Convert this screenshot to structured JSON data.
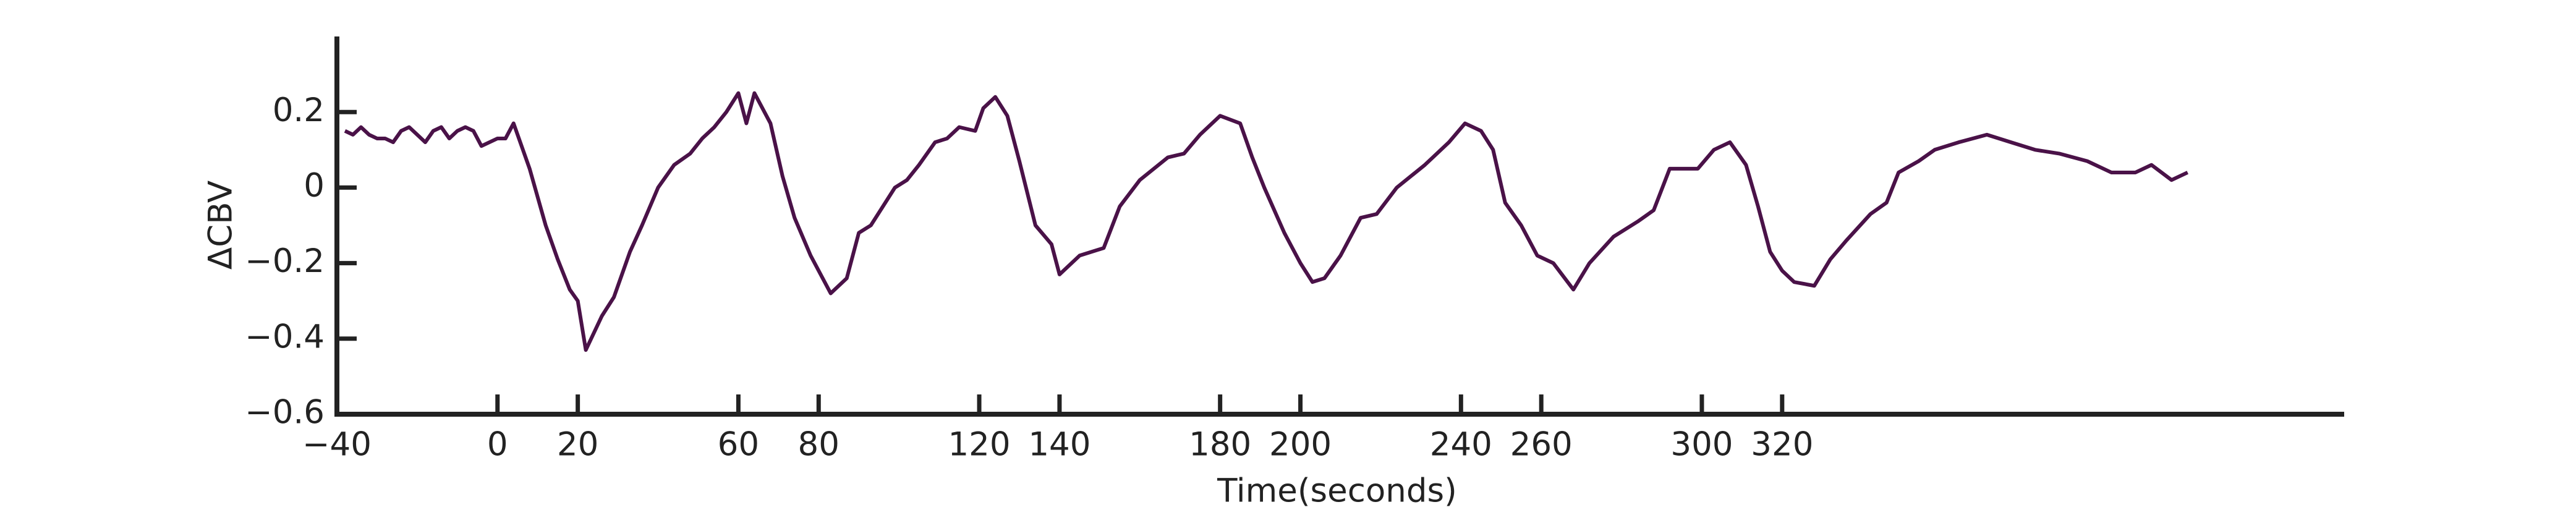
{
  "chart_data": {
    "type": "line",
    "xlabel": "Time(seconds)",
    "ylabel": "ΔCBV",
    "x": [
      -38,
      -36,
      -34,
      -32,
      -30,
      -28,
      -26,
      -24,
      -22,
      -20,
      -18,
      -16,
      -14,
      -12,
      -10,
      -8,
      -6,
      -4,
      -2,
      0,
      2,
      4,
      8,
      12,
      15,
      18,
      20,
      22,
      26,
      29,
      33,
      36,
      40,
      44,
      48,
      51,
      54,
      57,
      60,
      62,
      64,
      68,
      71,
      74,
      78,
      83,
      87,
      90,
      93,
      96,
      99,
      102,
      105,
      109,
      112,
      115,
      119,
      121,
      124,
      127,
      130,
      134,
      138,
      140,
      145,
      151,
      155,
      160,
      167,
      171,
      175,
      180,
      185,
      188,
      191,
      196,
      200,
      203,
      206,
      210,
      215,
      219,
      224,
      231,
      237,
      241,
      245,
      248,
      251,
      255,
      259,
      263,
      268,
      272,
      278,
      284,
      288,
      292,
      299,
      303,
      307,
      311,
      314,
      317,
      320,
      323,
      328,
      332,
      336,
      342,
      346,
      349,
      354,
      358,
      364,
      371,
      377,
      383,
      389,
      396,
      402,
      408,
      412,
      417,
      421
    ],
    "series": [
      {
        "name": "ΔCBV",
        "color": "#4a1248",
        "values": [
          0.15,
          0.14,
          0.16,
          0.14,
          0.13,
          0.13,
          0.12,
          0.15,
          0.16,
          0.14,
          0.12,
          0.15,
          0.16,
          0.13,
          0.15,
          0.16,
          0.15,
          0.11,
          0.12,
          0.13,
          0.13,
          0.17,
          0.05,
          -0.1,
          -0.19,
          -0.27,
          -0.3,
          -0.43,
          -0.34,
          -0.29,
          -0.17,
          -0.1,
          0.0,
          0.06,
          0.09,
          0.13,
          0.16,
          0.2,
          0.25,
          0.17,
          0.25,
          0.17,
          0.03,
          -0.08,
          -0.18,
          -0.28,
          -0.24,
          -0.12,
          -0.1,
          -0.05,
          0.0,
          0.02,
          0.06,
          0.12,
          0.13,
          0.16,
          0.15,
          0.21,
          0.24,
          0.19,
          0.07,
          -0.1,
          -0.15,
          -0.23,
          -0.18,
          -0.16,
          -0.05,
          0.02,
          0.08,
          0.09,
          0.14,
          0.19,
          0.17,
          0.08,
          0.0,
          -0.12,
          -0.2,
          -0.25,
          -0.24,
          -0.18,
          -0.08,
          -0.07,
          0.0,
          0.06,
          0.12,
          0.17,
          0.15,
          0.1,
          -0.04,
          -0.1,
          -0.18,
          -0.2,
          -0.27,
          -0.2,
          -0.13,
          -0.09,
          -0.06,
          0.05,
          0.05,
          0.1,
          0.12,
          0.06,
          -0.05,
          -0.17,
          -0.22,
          -0.25,
          -0.26,
          -0.19,
          -0.14,
          -0.07,
          -0.04,
          0.04,
          0.07,
          0.1,
          0.12,
          0.14,
          0.12,
          0.1,
          0.09,
          0.07,
          0.04,
          0.04,
          0.06,
          0.02,
          0.04
        ]
      }
    ],
    "xlim": [
      -40,
      460
    ],
    "ylim": [
      -0.6,
      0.4
    ],
    "xticks": [
      {
        "value": -40,
        "label": "−40"
      },
      0,
      20,
      60,
      80,
      120,
      140,
      180,
      200,
      240,
      260,
      300,
      320
    ],
    "yticks": [
      {
        "value": -0.6,
        "label": "−0.6"
      },
      {
        "value": -0.4,
        "label": "−0.4"
      },
      {
        "value": -0.2,
        "label": "−0.2"
      },
      0,
      0.2
    ]
  }
}
